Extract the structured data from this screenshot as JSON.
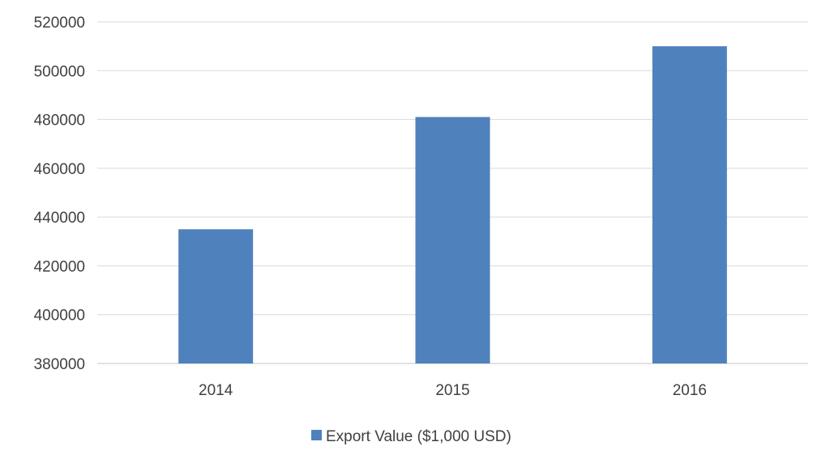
{
  "chart_data": {
    "type": "bar",
    "categories": [
      "2014",
      "2015",
      "2016"
    ],
    "series": [
      {
        "name": "Export Value ($1,000 USD)",
        "values": [
          435000,
          481000,
          510000
        ],
        "color": "#4f81bd"
      }
    ],
    "title": "",
    "xlabel": "",
    "ylabel": "",
    "ylim": [
      380000,
      520000
    ],
    "yticks": [
      "380000",
      "400000",
      "420000",
      "440000",
      "460000",
      "480000",
      "500000",
      "520000"
    ],
    "grid": true,
    "grid_color": "#d9d9d9",
    "legend_position": "bottom"
  }
}
